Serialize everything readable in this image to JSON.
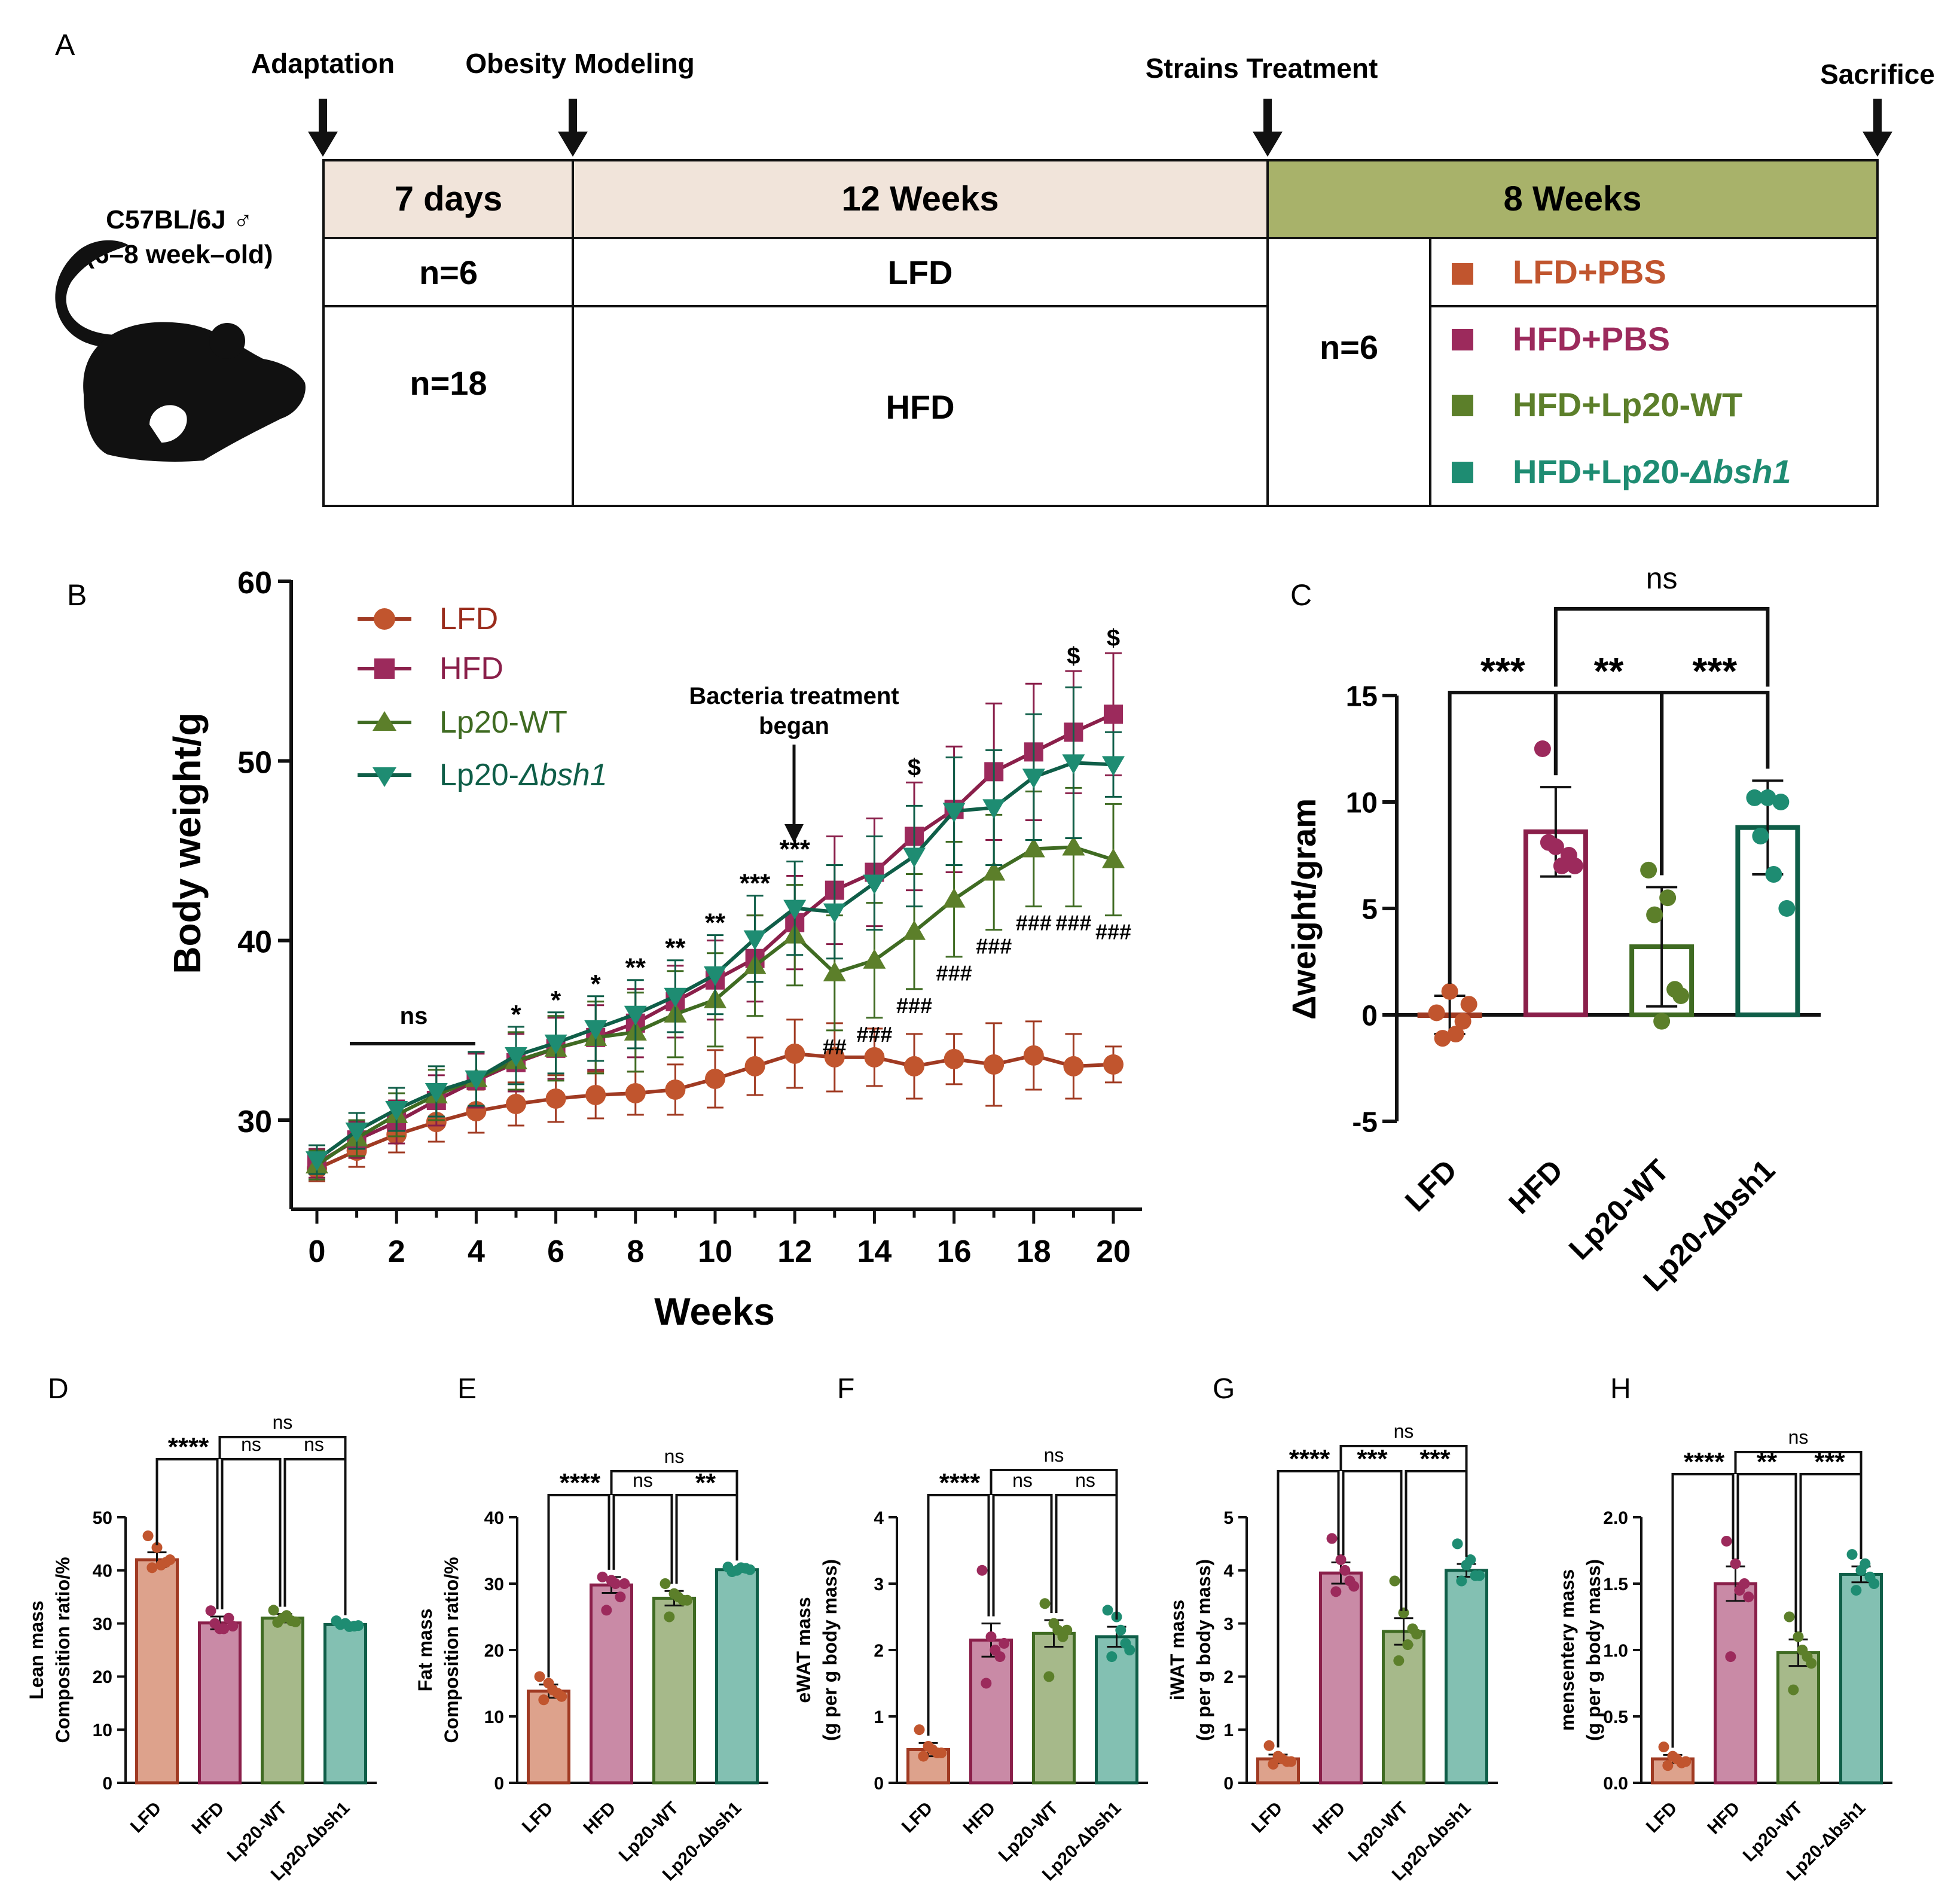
{
  "colors": {
    "lfd": "#c1552e",
    "hfd": "#9c2a5c",
    "wt": "#5c7f2a",
    "bsh": "#1e8c72",
    "lfd_line": "#a03a22",
    "hfd_line": "#8a1f4a",
    "wt_line": "#3f6b22",
    "bsh_line": "#0f5e48",
    "beige": "#f1e4da",
    "olive": "#a8b26a"
  },
  "panels": {
    "A": "A",
    "B": "B",
    "C": "C",
    "D": "D",
    "E": "E",
    "F": "F",
    "G": "G",
    "H": "H"
  },
  "timeline": {
    "events": [
      "Adaptation",
      "Obesity Modeling",
      "Strains Treatment",
      "Sacrifice"
    ],
    "mouse_strain": "C57BL/6J ♂",
    "mouse_age": "(6–8 week–old)",
    "phase_headers": [
      "7 days",
      "12 Weeks",
      "8 Weeks"
    ],
    "lfd_n": "n=6",
    "hfd_n": "n=18",
    "lfd_diet": "LFD",
    "hfd_diet": "HFD",
    "treat_n": "n=6",
    "groups": [
      "LFD+PBS",
      "HFD+PBS",
      "HFD+Lp20-WT",
      "HFD+Lp20-"
    ],
    "group_italic": "Δbsh1"
  },
  "chart_data": [
    {
      "id": "B",
      "type": "line",
      "title": "",
      "xlabel": "Weeks",
      "ylabel": "Body weight/g",
      "xlim": [
        0,
        20
      ],
      "ylim": [
        25,
        60
      ],
      "x_ticks": [
        "0",
        "2",
        "4",
        "6",
        "8",
        "10",
        "12",
        "14",
        "16",
        "18",
        "20"
      ],
      "y_ticks": [
        "30",
        "40",
        "50",
        "60"
      ],
      "x": [
        0,
        1,
        2,
        3,
        4,
        5,
        6,
        7,
        8,
        9,
        10,
        11,
        12,
        13,
        14,
        15,
        16,
        17,
        18,
        19,
        20
      ],
      "legend": [
        "LFD",
        "HFD",
        "Lp20-WT",
        "Lp20-"
      ],
      "legend_italic": "Δbsh1",
      "annotation": [
        "Bacteria treatment",
        "began"
      ],
      "ns_label": "ns",
      "series": [
        {
          "name": "LFD",
          "values": [
            27.3,
            28.3,
            29.2,
            29.9,
            30.5,
            30.9,
            31.2,
            31.4,
            31.5,
            31.7,
            32.3,
            33.0,
            33.7,
            33.5,
            33.5,
            33.0,
            33.4,
            33.1,
            33.6,
            33.0,
            33.1
          ],
          "errors": [
            0.7,
            0.9,
            1.0,
            1.1,
            1.2,
            1.2,
            1.3,
            1.3,
            1.2,
            1.4,
            1.6,
            1.6,
            1.9,
            1.9,
            1.6,
            1.8,
            1.4,
            2.3,
            1.9,
            1.8,
            1.0
          ]
        },
        {
          "name": "HFD",
          "values": [
            27.6,
            28.9,
            29.9,
            31.1,
            32.2,
            33.2,
            34.0,
            34.6,
            35.4,
            36.6,
            37.8,
            39.0,
            41.0,
            42.8,
            43.8,
            45.8,
            47.3,
            49.4,
            50.5,
            51.6,
            52.6
          ],
          "errors": [
            0.8,
            1.0,
            1.2,
            1.4,
            1.5,
            1.6,
            1.7,
            1.8,
            1.9,
            2.0,
            2.2,
            2.4,
            2.6,
            3.0,
            3.0,
            3.0,
            3.5,
            3.8,
            3.8,
            3.4,
            3.4
          ]
        },
        {
          "name": "Lp20-WT",
          "values": [
            27.5,
            29.0,
            30.3,
            31.4,
            32.3,
            33.3,
            34.0,
            34.6,
            34.9,
            35.9,
            36.7,
            38.6,
            40.3,
            38.2,
            38.9,
            40.5,
            42.3,
            43.8,
            45.1,
            45.2,
            44.5
          ],
          "errors": [
            0.8,
            1.0,
            1.2,
            1.4,
            1.5,
            1.6,
            1.8,
            2.0,
            2.2,
            2.4,
            2.6,
            2.8,
            2.8,
            3.2,
            3.2,
            3.2,
            3.2,
            3.2,
            3.2,
            3.3,
            3.1
          ]
        },
        {
          "name": "Lp20-Δbsh1",
          "values": [
            27.8,
            29.4,
            30.6,
            31.6,
            32.3,
            33.6,
            34.3,
            35.1,
            35.9,
            36.9,
            38.1,
            40.1,
            41.8,
            41.6,
            43.2,
            44.7,
            47.2,
            47.4,
            49.1,
            49.9,
            49.8
          ],
          "errors": [
            0.8,
            1.0,
            1.2,
            1.4,
            1.5,
            1.6,
            1.7,
            1.8,
            1.9,
            2.0,
            2.2,
            2.4,
            2.6,
            2.6,
            2.6,
            2.8,
            3.0,
            3.2,
            3.5,
            4.2,
            1.8
          ]
        }
      ],
      "sig_star": [
        {
          "x": 5,
          "label": "*"
        },
        {
          "x": 6,
          "label": "*"
        },
        {
          "x": 7,
          "label": "*"
        },
        {
          "x": 8,
          "label": "**"
        },
        {
          "x": 9,
          "label": "**"
        },
        {
          "x": 10,
          "label": "**"
        },
        {
          "x": 11,
          "label": "***"
        },
        {
          "x": 12,
          "label": "***"
        }
      ],
      "sig_hash": [
        {
          "x": 13,
          "label": "##"
        },
        {
          "x": 14,
          "label": "###"
        },
        {
          "x": 15,
          "label": "###"
        },
        {
          "x": 16,
          "label": "###"
        },
        {
          "x": 17,
          "label": "###"
        },
        {
          "x": 18,
          "label": "###"
        },
        {
          "x": 19,
          "label": "###"
        },
        {
          "x": 20,
          "label": "###"
        }
      ],
      "sig_dollar": [
        {
          "x": 15,
          "label": "$"
        },
        {
          "x": 19,
          "label": "$"
        },
        {
          "x": 20,
          "label": "$"
        }
      ]
    },
    {
      "id": "C",
      "type": "bar",
      "ylabel": "Δweight/gram",
      "ylim": [
        -5,
        15
      ],
      "y_ticks": [
        "-5",
        "0",
        "5",
        "10",
        "15"
      ],
      "categories": [
        "LFD",
        "HFD",
        "Lp20-WT",
        "Lp20-Δbsh1"
      ],
      "values": [
        0.0,
        8.6,
        3.2,
        8.8
      ],
      "errors": [
        0.9,
        2.1,
        2.8,
        2.2
      ],
      "points": [
        [
          0.1,
          1.1,
          -0.3,
          -1.1,
          -0.9,
          0.5
        ],
        [
          12.5,
          7.9,
          7.5,
          8.1,
          7.0,
          7.0
        ],
        [
          6.8,
          -0.3,
          1.2,
          4.7,
          5.5,
          0.9
        ],
        [
          10.2,
          10.2,
          10.0,
          8.4,
          6.6,
          5.0
        ]
      ],
      "comparisons": [
        {
          "from": 0,
          "to": 1,
          "label": "***",
          "level": 0
        },
        {
          "from": 1,
          "to": 2,
          "label": "**",
          "level": 0
        },
        {
          "from": 2,
          "to": 3,
          "label": "***",
          "level": 0
        },
        {
          "from": 1,
          "to": 3,
          "label": "ns",
          "level": 1
        }
      ]
    },
    {
      "id": "D",
      "type": "bar",
      "ylabel": [
        "Lean mass",
        "Composition ratio/%"
      ],
      "ylim": [
        0,
        50
      ],
      "y_ticks": [
        "0",
        "10",
        "20",
        "30",
        "40",
        "50"
      ],
      "categories": [
        "LFD",
        "HFD",
        "Lp20-WT",
        "Lp20-Δbsh1"
      ],
      "values": [
        42.0,
        30.1,
        31.0,
        29.8
      ],
      "errors": [
        1.4,
        1.2,
        0.8,
        0.4
      ],
      "points": [
        [
          46.5,
          44.3,
          41.5,
          40.5,
          41.0,
          42.0
        ],
        [
          32.4,
          29.0,
          31.0,
          30.0,
          29.0,
          29.5
        ],
        [
          32.5,
          31.0,
          30.5,
          30.2,
          31.5,
          30.3
        ],
        [
          30.5,
          30.0,
          29.5,
          29.8,
          29.4,
          29.6
        ]
      ],
      "comparisons": [
        {
          "from": 0,
          "to": 1,
          "label": "****",
          "level": 0
        },
        {
          "from": 1,
          "to": 2,
          "label": "ns",
          "level": 0
        },
        {
          "from": 2,
          "to": 3,
          "label": "ns",
          "level": 0
        },
        {
          "from": 1,
          "to": 3,
          "label": "ns",
          "level": 1
        }
      ]
    },
    {
      "id": "E",
      "type": "bar",
      "ylabel": [
        "Fat mass",
        "Composition ratio/%"
      ],
      "ylim": [
        0,
        40
      ],
      "y_ticks": [
        "0",
        "10",
        "20",
        "30",
        "40"
      ],
      "categories": [
        "LFD",
        "HFD",
        "Lp20-WT",
        "Lp20-Δbsh1"
      ],
      "values": [
        13.8,
        29.8,
        27.8,
        32.1
      ],
      "errors": [
        1.0,
        1.2,
        1.1,
        0.3
      ],
      "points": [
        [
          16.0,
          15.0,
          13.5,
          12.5,
          14.0,
          13.0
        ],
        [
          31.0,
          30.5,
          28.0,
          26.0,
          30.0,
          30.0
        ],
        [
          30.0,
          28.5,
          27.5,
          25.0,
          28.0,
          27.5
        ],
        [
          32.5,
          32.0,
          32.3,
          31.8,
          32.4,
          32.1
        ]
      ],
      "comparisons": [
        {
          "from": 0,
          "to": 1,
          "label": "****",
          "level": 0
        },
        {
          "from": 1,
          "to": 2,
          "label": "ns",
          "level": 0
        },
        {
          "from": 2,
          "to": 3,
          "label": "**",
          "level": 0
        },
        {
          "from": 1,
          "to": 3,
          "label": "ns",
          "level": 1
        }
      ]
    },
    {
      "id": "F",
      "type": "bar",
      "ylabel": [
        "eWAT mass",
        "(g per g body mass)"
      ],
      "ylim": [
        0,
        4
      ],
      "y_ticks": [
        "0",
        "1",
        "2",
        "3",
        "4"
      ],
      "categories": [
        "LFD",
        "HFD",
        "Lp20-WT",
        "Lp20-Δbsh1"
      ],
      "values": [
        0.5,
        2.15,
        2.25,
        2.2
      ],
      "errors": [
        0.1,
        0.25,
        0.2,
        0.15
      ],
      "points": [
        [
          0.8,
          0.55,
          0.45,
          0.4,
          0.5,
          0.45
        ],
        [
          3.2,
          2.2,
          1.9,
          1.5,
          2.0,
          2.1
        ],
        [
          2.7,
          2.4,
          2.2,
          1.6,
          2.3,
          2.3
        ],
        [
          2.6,
          2.5,
          2.1,
          1.9,
          2.3,
          2.0
        ]
      ],
      "comparisons": [
        {
          "from": 0,
          "to": 1,
          "label": "****",
          "level": 0
        },
        {
          "from": 1,
          "to": 2,
          "label": "ns",
          "level": 0
        },
        {
          "from": 2,
          "to": 3,
          "label": "ns",
          "level": 0
        },
        {
          "from": 1,
          "to": 3,
          "label": "ns",
          "level": 1
        }
      ]
    },
    {
      "id": "G",
      "type": "bar",
      "ylabel": [
        "iWAT mass",
        "(g per g body mass)"
      ],
      "ylim": [
        0,
        5
      ],
      "y_ticks": [
        "0",
        "1",
        "2",
        "3",
        "4",
        "5"
      ],
      "categories": [
        "LFD",
        "HFD",
        "Lp20-WT",
        "Lp20-Δbsh1"
      ],
      "values": [
        0.45,
        3.95,
        2.85,
        4.0
      ],
      "errors": [
        0.08,
        0.2,
        0.25,
        0.12
      ],
      "points": [
        [
          0.7,
          0.5,
          0.4,
          0.35,
          0.45,
          0.4
        ],
        [
          4.6,
          4.2,
          3.8,
          3.6,
          4.0,
          3.7
        ],
        [
          3.8,
          3.2,
          2.9,
          2.3,
          2.6,
          2.8
        ],
        [
          4.5,
          4.1,
          3.9,
          3.8,
          4.2,
          3.9
        ]
      ],
      "comparisons": [
        {
          "from": 0,
          "to": 1,
          "label": "****",
          "level": 0
        },
        {
          "from": 1,
          "to": 2,
          "label": "***",
          "level": 0
        },
        {
          "from": 2,
          "to": 3,
          "label": "***",
          "level": 0
        },
        {
          "from": 1,
          "to": 3,
          "label": "ns",
          "level": 1
        }
      ]
    },
    {
      "id": "H",
      "type": "bar",
      "ylabel": [
        "mensentery mass",
        "(g per g body mass)"
      ],
      "ylim": [
        0,
        2.0
      ],
      "y_ticks": [
        "0.0",
        "0.5",
        "1.0",
        "1.5",
        "2.0"
      ],
      "categories": [
        "LFD",
        "HFD",
        "Lp20-WT",
        "Lp20-Δbsh1"
      ],
      "values": [
        0.18,
        1.5,
        0.98,
        1.57
      ],
      "errors": [
        0.03,
        0.13,
        0.1,
        0.06
      ],
      "points": [
        [
          0.27,
          0.2,
          0.15,
          0.13,
          0.18,
          0.16
        ],
        [
          1.82,
          1.65,
          1.5,
          0.95,
          1.45,
          1.4
        ],
        [
          1.25,
          1.1,
          0.95,
          0.7,
          1.0,
          0.9
        ],
        [
          1.72,
          1.6,
          1.55,
          1.45,
          1.65,
          1.5
        ]
      ],
      "comparisons": [
        {
          "from": 0,
          "to": 1,
          "label": "****",
          "level": 0
        },
        {
          "from": 1,
          "to": 2,
          "label": "**",
          "level": 0
        },
        {
          "from": 2,
          "to": 3,
          "label": "***",
          "level": 0
        },
        {
          "from": 1,
          "to": 3,
          "label": "ns",
          "level": 1
        }
      ]
    }
  ]
}
